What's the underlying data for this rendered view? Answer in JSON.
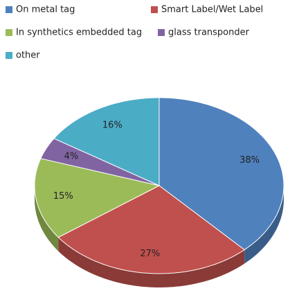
{
  "chart_data": {
    "type": "pie",
    "categories": [
      "On metal tag",
      "Smart Label/Wet Label",
      "In synthetics embedded tag",
      "glass transponder",
      "other"
    ],
    "values": [
      38,
      27,
      15,
      4,
      16
    ],
    "value_labels": [
      "38%",
      "27%",
      "15%",
      "4%",
      "16%"
    ],
    "colors": [
      "#4f81bd",
      "#c0504d",
      "#9bbb59",
      "#8064a2",
      "#4bacc6"
    ],
    "legend": "top"
  }
}
